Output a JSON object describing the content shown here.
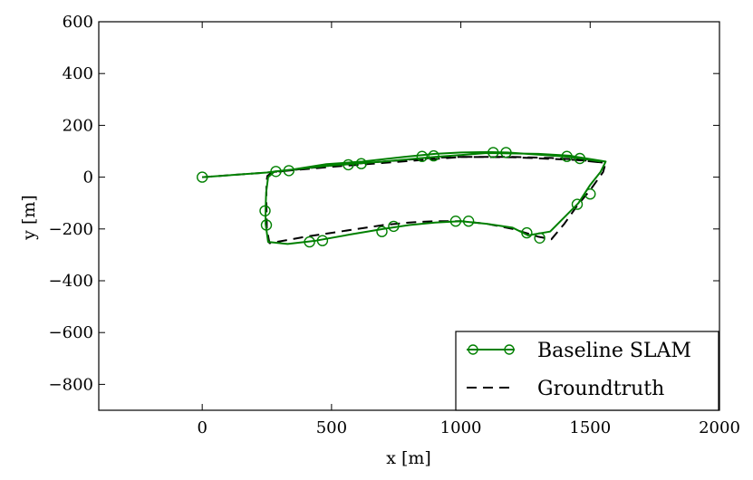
{
  "chart_data": {
    "type": "line",
    "title": "",
    "xlabel": "x [m]",
    "ylabel": "y [m]",
    "xlim": [
      -400,
      2000
    ],
    "ylim": [
      -900,
      600
    ],
    "xticks": [
      0,
      500,
      1000,
      1500,
      2000
    ],
    "yticks": [
      600,
      400,
      200,
      0,
      -200,
      -400,
      -600,
      -800
    ],
    "xtick_labels": [
      "0",
      "500",
      "1000",
      "1500",
      "2000"
    ],
    "ytick_labels": [
      "600",
      "400",
      "200",
      "0",
      "−200",
      "−400",
      "−600",
      "−800"
    ],
    "grid": false,
    "legend_position": "bottom-right",
    "series": [
      {
        "name": "Baseline SLAM",
        "color": "#008000",
        "style": "solid",
        "marker": "open-circle",
        "x": [
          0,
          250,
          310,
          500,
          700,
          900,
          1100,
          1300,
          1420,
          1560,
          1540,
          1500,
          1455,
          1345,
          1260,
          1200,
          1100,
          1000,
          900,
          800,
          700,
          580,
          440,
          330,
          255,
          245,
          245,
          247,
          255,
          280,
          340,
          480,
          620,
          780,
          900,
          1000,
          1100,
          1180,
          1280,
          1400,
          1440,
          1480,
          1540
        ],
        "y": [
          0,
          18,
          25,
          45,
          60,
          78,
          93,
          90,
          83,
          60,
          20,
          -30,
          -100,
          -210,
          -225,
          -195,
          -180,
          -170,
          -175,
          -185,
          -200,
          -220,
          -245,
          -258,
          -250,
          -180,
          -125,
          -60,
          0,
          22,
          28,
          50,
          60,
          78,
          90,
          95,
          97,
          95,
          88,
          80,
          75,
          70,
          60
        ],
        "marker_x": [
          0,
          285,
          335,
          565,
          615,
          850,
          895,
          1125,
          1175,
          1410,
          1460,
          1500,
          1450,
          1305,
          1255,
          1030,
          980,
          740,
          695,
          465,
          415,
          248,
          243
        ],
        "marker_y": [
          0,
          22,
          25,
          48,
          52,
          80,
          82,
          95,
          95,
          80,
          72,
          -65,
          -105,
          -235,
          -215,
          -170,
          -170,
          -190,
          -210,
          -245,
          -250,
          -185,
          -130
        ]
      },
      {
        "name": "Groundtruth",
        "color": "#000000",
        "style": "dashed",
        "marker": "none",
        "x": [
          0,
          250,
          500,
          700,
          900,
          1000,
          1200,
          1350,
          1450,
          1560,
          1550,
          1500,
          1450,
          1400,
          1350,
          1300,
          1200,
          1100,
          1000,
          900,
          800,
          700,
          600,
          500,
          400,
          300,
          260,
          250,
          248,
          248,
          252,
          270,
          330,
          500,
          700,
          900,
          1000,
          1200,
          1450,
          1560
        ],
        "y": [
          0,
          18,
          40,
          55,
          70,
          78,
          78,
          74,
          68,
          55,
          20,
          -50,
          -110,
          -180,
          -240,
          -230,
          -200,
          -180,
          -170,
          -170,
          -175,
          -185,
          -200,
          -215,
          -230,
          -248,
          -255,
          -200,
          -100,
          -20,
          5,
          18,
          25,
          45,
          60,
          75,
          78,
          77,
          66,
          55
        ]
      }
    ]
  }
}
